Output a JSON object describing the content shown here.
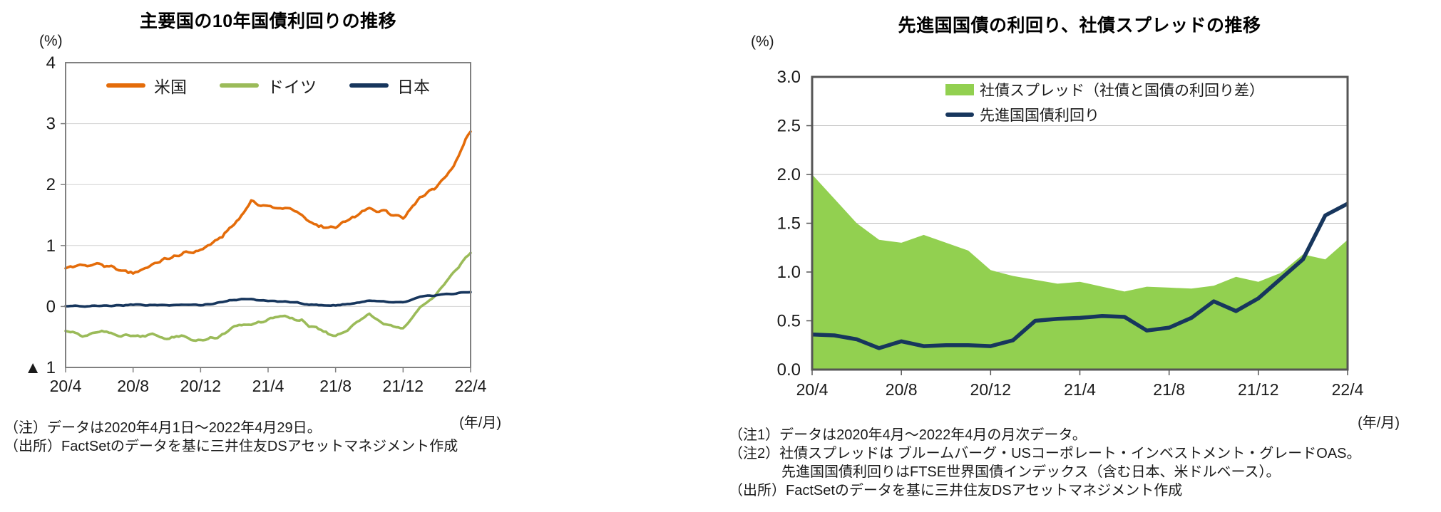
{
  "left_panel": {
    "title": "主要国の10年国債利回りの推移",
    "y_unit": "(%)",
    "x_unit": "(年/月)",
    "notes": {
      "note": "（注）データは2020年4月1日～2022年4月29日。",
      "source": "（出所）FactSetのデータを基に三井住友DSアセットマネジメント作成"
    }
  },
  "right_panel": {
    "title": "先進国国債の利回り、社債スプレッドの推移",
    "y_unit": "(%)",
    "x_unit": "(年/月)",
    "notes": {
      "note1": "（注1）データは2020年4月～2022年4月の月次データ。",
      "note2": "（注2）社債スプレッドは ブルームバーグ・USコーポレート・インベストメント・グレードOAS。",
      "note2_cont": "先進国国債利回りはFTSE世界国債インデックス（含む日本、米ドルベース）。",
      "source": "（出所）FactSetのデータを基に三井住友DSアセットマネジメント作成"
    }
  },
  "chart_data": [
    {
      "type": "line",
      "title": "主要国の10年国債利回りの推移",
      "ylabel": "(%)",
      "xlabel": "(年/月)",
      "ylim": [
        -1,
        4
      ],
      "grid": true,
      "legend_position": "top-center-inside",
      "y_ticks": [
        "4",
        "3",
        "2",
        "1",
        "0",
        "▲ 1"
      ],
      "y_tick_values": [
        4,
        3,
        2,
        1,
        0,
        -1
      ],
      "x_ticks": [
        "20/4",
        "20/8",
        "20/12",
        "21/4",
        "21/8",
        "21/12",
        "22/4"
      ],
      "x_tick_month_index": [
        0,
        4,
        8,
        12,
        16,
        20,
        24
      ],
      "months": [
        "20/4",
        "20/5",
        "20/6",
        "20/7",
        "20/8",
        "20/9",
        "20/10",
        "20/11",
        "20/12",
        "21/1",
        "21/2",
        "21/3",
        "21/4",
        "21/5",
        "21/6",
        "21/7",
        "21/8",
        "21/9",
        "21/10",
        "21/11",
        "21/12",
        "22/1",
        "22/2",
        "22/3",
        "22/4"
      ],
      "sampling_note": "daily data 2020/4/1-2022/4/29; monthly anchor values below",
      "series": [
        {
          "id": "us",
          "name": "米国",
          "color": "#E46C0A",
          "values": [
            0.64,
            0.67,
            0.7,
            0.6,
            0.55,
            0.67,
            0.78,
            0.86,
            0.93,
            1.08,
            1.35,
            1.72,
            1.63,
            1.62,
            1.5,
            1.3,
            1.28,
            1.45,
            1.6,
            1.57,
            1.47,
            1.8,
            1.97,
            2.32,
            2.88
          ]
        },
        {
          "id": "germany",
          "name": "ドイツ",
          "color": "#9BBB59",
          "values": [
            -0.36,
            -0.5,
            -0.42,
            -0.46,
            -0.48,
            -0.46,
            -0.52,
            -0.5,
            -0.57,
            -0.52,
            -0.34,
            -0.3,
            -0.22,
            -0.16,
            -0.24,
            -0.4,
            -0.48,
            -0.32,
            -0.12,
            -0.28,
            -0.36,
            -0.02,
            0.2,
            0.55,
            0.9
          ]
        },
        {
          "id": "japan",
          "name": "日本",
          "color": "#17365D",
          "values": [
            0.01,
            0.0,
            0.02,
            0.02,
            0.03,
            0.02,
            0.03,
            0.03,
            0.02,
            0.05,
            0.11,
            0.12,
            0.09,
            0.08,
            0.05,
            0.02,
            0.02,
            0.05,
            0.09,
            0.07,
            0.06,
            0.15,
            0.19,
            0.21,
            0.24
          ]
        }
      ]
    },
    {
      "type": "area",
      "title": "先進国国債の利回り、社債スプレッドの推移",
      "ylabel": "(%)",
      "xlabel": "(年/月)",
      "ylim": [
        0,
        3
      ],
      "grid": true,
      "legend_position": "top-center-inside",
      "y_ticks": [
        "3.0",
        "2.5",
        "2.0",
        "1.5",
        "1.0",
        "0.5",
        "0.0"
      ],
      "y_tick_values": [
        3.0,
        2.5,
        2.0,
        1.5,
        1.0,
        0.5,
        0.0
      ],
      "x_ticks": [
        "20/4",
        "20/8",
        "20/12",
        "21/4",
        "21/8",
        "21/12",
        "22/4"
      ],
      "x_tick_month_index": [
        0,
        4,
        8,
        12,
        16,
        20,
        24
      ],
      "months": [
        "20/4",
        "20/5",
        "20/6",
        "20/7",
        "20/8",
        "20/9",
        "20/10",
        "20/11",
        "20/12",
        "21/1",
        "21/2",
        "21/3",
        "21/4",
        "21/5",
        "21/6",
        "21/7",
        "21/8",
        "21/9",
        "21/10",
        "21/11",
        "21/12",
        "22/1",
        "22/2",
        "22/3",
        "22/4"
      ],
      "series": [
        {
          "id": "corporate-spread",
          "name": "社債スプレッド（社債と国債の利回り差）",
          "type": "area",
          "color": "#92D050",
          "values": [
            2.0,
            1.75,
            1.5,
            1.33,
            1.3,
            1.38,
            1.3,
            1.22,
            1.02,
            0.96,
            0.92,
            0.88,
            0.9,
            0.85,
            0.8,
            0.85,
            0.84,
            0.83,
            0.86,
            0.95,
            0.9,
            0.99,
            1.18,
            1.13,
            1.33
          ]
        },
        {
          "id": "gov-yield",
          "name": "先進国国債利回り",
          "type": "line",
          "color": "#17365D",
          "values": [
            0.36,
            0.35,
            0.31,
            0.22,
            0.29,
            0.24,
            0.25,
            0.25,
            0.24,
            0.3,
            0.5,
            0.52,
            0.53,
            0.55,
            0.54,
            0.4,
            0.43,
            0.53,
            0.7,
            0.6,
            0.73,
            0.93,
            1.13,
            1.58,
            1.7
          ]
        }
      ]
    }
  ]
}
